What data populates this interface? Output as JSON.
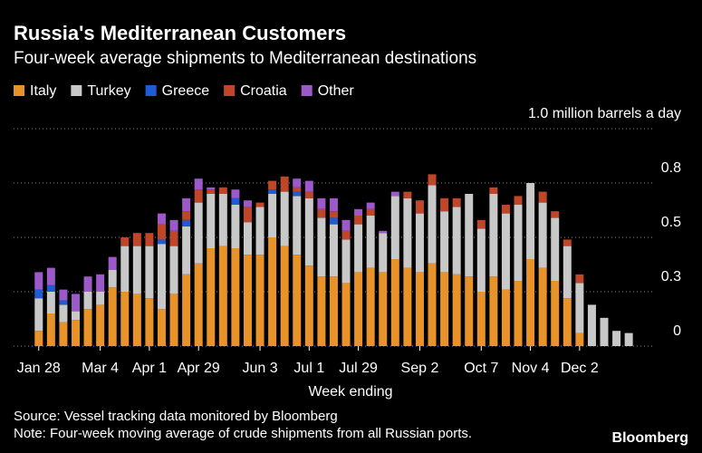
{
  "chart_data": {
    "type": "stacked_bar",
    "title": "Russia's Mediterranean Customers",
    "subtitle": "Four-week average shipments to Mediterranean destinations",
    "x_label": "Week ending",
    "source": "Source: Vessel tracking data monitored by Bloomberg",
    "note": "Note: Four-week moving average of crude shipments from all Russian ports.",
    "logo": "Bloomberg",
    "categories": [
      "Jan 28",
      null,
      null,
      null,
      null,
      "Mar 4",
      null,
      null,
      null,
      "Apr 1",
      null,
      null,
      null,
      "Apr 29",
      null,
      null,
      null,
      null,
      "Jun 3",
      null,
      null,
      null,
      "Jul 1",
      null,
      null,
      null,
      "Jul 29",
      null,
      null,
      null,
      null,
      "Sep 2",
      null,
      null,
      null,
      null,
      "Oct 7",
      null,
      null,
      null,
      "Nov 4",
      null,
      null,
      null,
      "Dec 2",
      null,
      null,
      null,
      null
    ],
    "series": [
      {
        "name": "Italy",
        "color": "#e8922a",
        "values": [
          0.07,
          0.15,
          0.11,
          0.12,
          0.17,
          0.19,
          0.27,
          0.25,
          0.24,
          0.22,
          0.17,
          0.24,
          0.33,
          0.38,
          0.45,
          0.46,
          0.45,
          0.42,
          0.42,
          0.5,
          0.46,
          0.42,
          0.37,
          0.32,
          0.32,
          0.29,
          0.34,
          0.36,
          0.34,
          0.4,
          0.36,
          0.34,
          0.38,
          0.34,
          0.33,
          0.32,
          0.25,
          0.32,
          0.26,
          0.3,
          0.4,
          0.36,
          0.3,
          0.22,
          0.06,
          0,
          0,
          0,
          0
        ]
      },
      {
        "name": "Turkey",
        "color": "#c8c8c8",
        "values": [
          0.15,
          0.1,
          0.08,
          0.04,
          0.08,
          0.06,
          0.08,
          0.21,
          0.22,
          0.24,
          0.3,
          0.22,
          0.22,
          0.28,
          0.25,
          0.24,
          0.2,
          0.15,
          0.22,
          0.2,
          0.25,
          0.27,
          0.31,
          0.27,
          0.24,
          0.2,
          0.22,
          0.24,
          0.18,
          0.29,
          0.32,
          0.27,
          0.36,
          0.28,
          0.31,
          0.38,
          0.29,
          0.38,
          0.35,
          0.35,
          0.35,
          0.3,
          0.29,
          0.24,
          0.23,
          0.19,
          0.13,
          0.07,
          0.06
        ]
      },
      {
        "name": "Greece",
        "color": "#1f5bd4",
        "values": [
          0.04,
          0.03,
          0.02,
          0,
          0,
          0,
          0,
          0,
          0,
          0,
          0.02,
          0,
          0.03,
          0,
          0,
          0,
          0.03,
          0,
          0,
          0.02,
          0,
          0.02,
          0,
          0,
          0.03,
          0,
          0,
          0,
          0,
          0,
          0,
          0,
          0,
          0,
          0,
          0,
          0,
          0,
          0,
          0,
          0,
          0,
          0,
          0,
          0,
          0,
          0,
          0,
          0
        ]
      },
      {
        "name": "Croatia",
        "color": "#c0462a",
        "values": [
          0,
          0,
          0,
          0,
          0,
          0,
          0,
          0.04,
          0.06,
          0.06,
          0.07,
          0.07,
          0.04,
          0.06,
          0.02,
          0.03,
          0,
          0.07,
          0.02,
          0.04,
          0.07,
          0.02,
          0.03,
          0.04,
          0.03,
          0.04,
          0.04,
          0.03,
          0,
          0,
          0.03,
          0.06,
          0.05,
          0.06,
          0.04,
          0,
          0.04,
          0.03,
          0.04,
          0.04,
          0,
          0.05,
          0.03,
          0.03,
          0.04,
          0,
          0,
          0,
          0
        ]
      },
      {
        "name": "Other",
        "color": "#9b59c9",
        "values": [
          0.08,
          0.08,
          0.05,
          0.08,
          0.07,
          0.08,
          0.06,
          0,
          0,
          0,
          0.05,
          0.05,
          0.06,
          0.05,
          0.01,
          0,
          0.04,
          0.03,
          0,
          0,
          0,
          0.04,
          0.05,
          0.05,
          0.06,
          0.05,
          0.03,
          0.03,
          0.01,
          0.02,
          0,
          0,
          0,
          0,
          0,
          0,
          0,
          0,
          0,
          0,
          0,
          0,
          0,
          0,
          0,
          0,
          0,
          0,
          0
        ]
      }
    ],
    "ylim": [
      0,
      1
    ],
    "yticks": [
      0,
      {
        "value": 0.25,
        "label": "0.3"
      },
      0.5,
      {
        "value": 0.75,
        "label": "0.8"
      },
      {
        "value": 1.0,
        "label": "1.0 million barrels a day"
      }
    ],
    "grid": true
  }
}
